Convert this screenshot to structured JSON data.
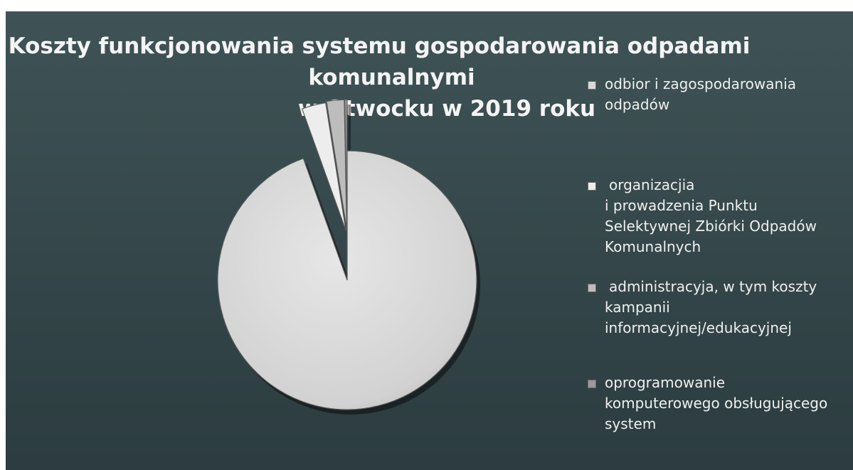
{
  "chart_data": {
    "type": "pie",
    "title_lines": [
      "Koszty funkcjonowania systemu gospodarowania odpadami",
      "komunalnymi",
      "w Otwocku w 2019 roku"
    ],
    "categories": [
      "odbior i zagospodarowania odpadów",
      "organizacjia i prowadzenia Punktu Selektywnej Zbiórki Odpadów Komunalnych",
      "administracyja, w tym koszty kampanii informacyjnej/edukacyjnej",
      "oprogramowanie komputerowego obsługującego system"
    ],
    "legend_lines": [
      [
        "odbior i zagospodarowania",
        "odpadów"
      ],
      [
        "organizacjia",
        "i prowadzenia Punktu",
        "Selektywnej Zbiórki Odpadów",
        "Komunalnych"
      ],
      [
        "administracyja, w tym koszty",
        "kampanii",
        "informacyjnej/edukacyjnej"
      ],
      [
        "oprogramowanie",
        "komputerowego obsługującego",
        "system"
      ]
    ],
    "values": [
      94.5,
      3.0,
      2.2,
      0.3
    ],
    "colors": [
      "#d8d8d8",
      "#ededed",
      "#bdbdbd",
      "#9a9a9a"
    ],
    "exploded": [
      false,
      true,
      true,
      true
    ],
    "start": "12 o'clock, clockwise",
    "legend_position": "right"
  },
  "colors": {
    "background": "#344649",
    "text": "#f0f0f0"
  }
}
